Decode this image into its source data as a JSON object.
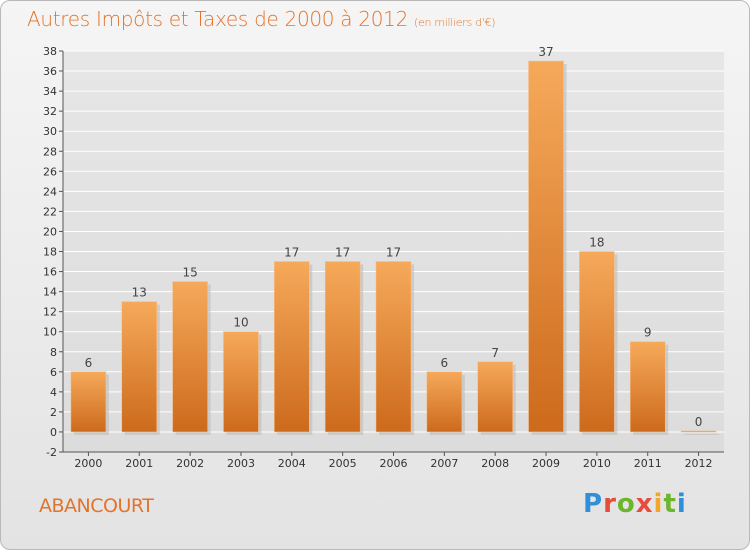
{
  "title": "Autres Impôts et Taxes de 2000 à 2012",
  "subtitle": "(en milliers d'€)",
  "commune": "ABANCOURT",
  "logo_text": "Proxiti",
  "colors": {
    "title": "#e2732a",
    "bar_light": "#f6a95a",
    "bar_dark": "#cd6a1c",
    "grid": "#ffffff",
    "background": "#ececec"
  },
  "chart_data": {
    "type": "bar",
    "title": "Autres Impôts et Taxes de 2000 à 2012",
    "subtitle": "(en milliers d'€)",
    "xlabel": "",
    "ylabel": "",
    "categories": [
      "2000",
      "2001",
      "2002",
      "2003",
      "2004",
      "2005",
      "2006",
      "2007",
      "2008",
      "2009",
      "2010",
      "2011",
      "2012"
    ],
    "values": [
      6,
      13,
      15,
      10,
      17,
      17,
      17,
      6,
      7,
      37,
      18,
      9,
      0
    ],
    "ylim": [
      -2,
      38
    ],
    "yticks": [
      -2,
      0,
      2,
      4,
      6,
      8,
      10,
      12,
      14,
      16,
      18,
      20,
      22,
      24,
      26,
      28,
      30,
      32,
      34,
      36,
      38
    ],
    "grid": true,
    "legend": "none"
  }
}
